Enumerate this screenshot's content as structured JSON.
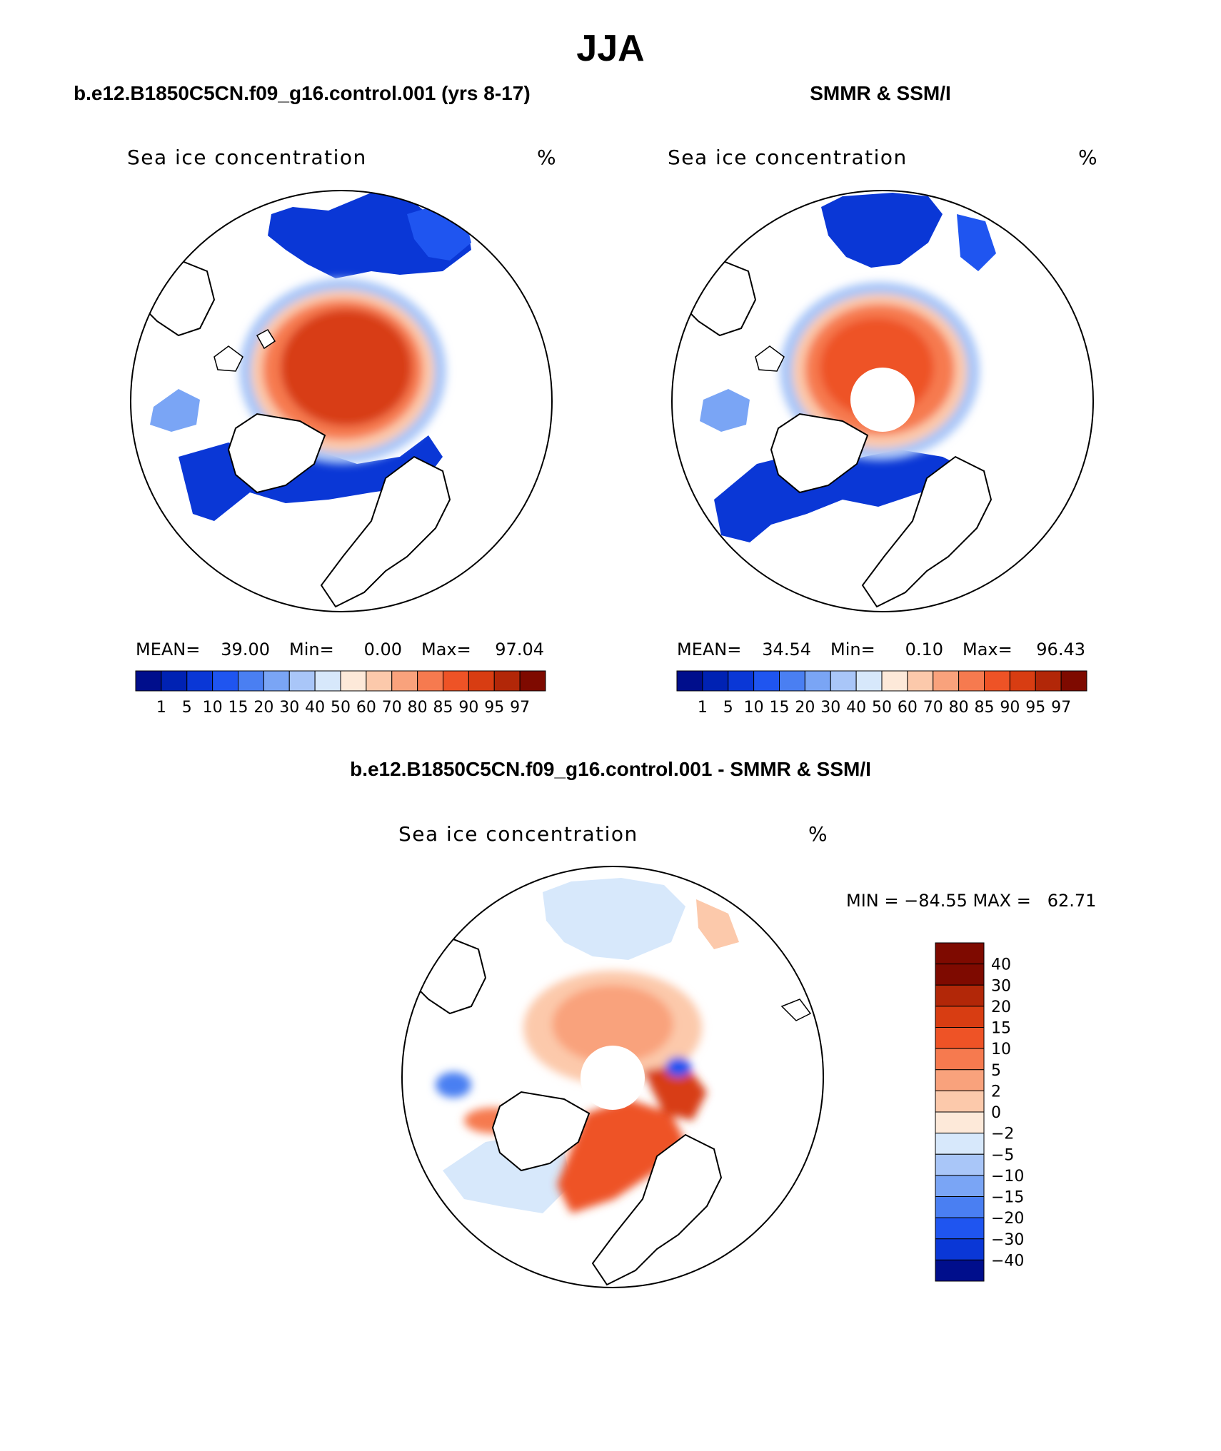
{
  "figure": {
    "title": "JJA",
    "bottom_heading": "b.e12.B1850C5CN.f09_g16.control.001 - SMMR & SSM/I"
  },
  "colors": {
    "concentration_scale": [
      "#000e8c",
      "#0022b3",
      "#0a37d6",
      "#1f55f0",
      "#4a7ff2",
      "#7aa5f5",
      "#a9c6f8",
      "#d7e8fb",
      "#fde9d9",
      "#fcc9ab",
      "#f9a27c",
      "#f67a4f",
      "#ee5326",
      "#d83d12",
      "#b22708",
      "#7e0a00"
    ],
    "difference_scale": [
      "#000e8c",
      "#0a37d6",
      "#1f55f0",
      "#4a7ff2",
      "#7aa5f5",
      "#a9c6f8",
      "#d7e8fb",
      "#fde9d9",
      "#fcc9ab",
      "#f9a27c",
      "#f67a4f",
      "#ee5326",
      "#d83d12",
      "#b22708",
      "#7e0a00"
    ]
  },
  "chart_data": [
    {
      "type": "heatmap",
      "name": "model",
      "heading": "b.e12.B1850C5CN.f09_g16.control.001 (yrs 8-17)",
      "title": "Sea ice concentration",
      "units": "%",
      "stats": {
        "mean_label": "MEAN=",
        "mean": "39.00",
        "min_label": "Min=",
        "min": "0.00",
        "max_label": "Max=",
        "max": "97.04"
      },
      "colorbar_ticks": [
        "1",
        "5",
        "10",
        "15",
        "20",
        "30",
        "40",
        "50",
        "60",
        "70",
        "80",
        "85",
        "90",
        "95",
        "97"
      ],
      "pole_hole": false
    },
    {
      "type": "heatmap",
      "name": "observations",
      "heading": "SMMR & SSM/I",
      "title": "Sea ice concentration",
      "units": "%",
      "stats": {
        "mean_label": "MEAN=",
        "mean": "34.54",
        "min_label": "Min=",
        "min": "0.10",
        "max_label": "Max=",
        "max": "96.43"
      },
      "colorbar_ticks": [
        "1",
        "5",
        "10",
        "15",
        "20",
        "30",
        "40",
        "50",
        "60",
        "70",
        "80",
        "85",
        "90",
        "95",
        "97"
      ],
      "pole_hole": true
    },
    {
      "type": "heatmap",
      "name": "difference",
      "title": "Sea ice concentration",
      "units": "%",
      "minmax": "MIN = −84.55 MAX =   62.71",
      "colorbar_ticks": [
        "40",
        "30",
        "20",
        "15",
        "10",
        "5",
        "2",
        "0",
        "−2",
        "−5",
        "−10",
        "−15",
        "−20",
        "−30",
        "−40"
      ],
      "pole_hole": true
    }
  ]
}
